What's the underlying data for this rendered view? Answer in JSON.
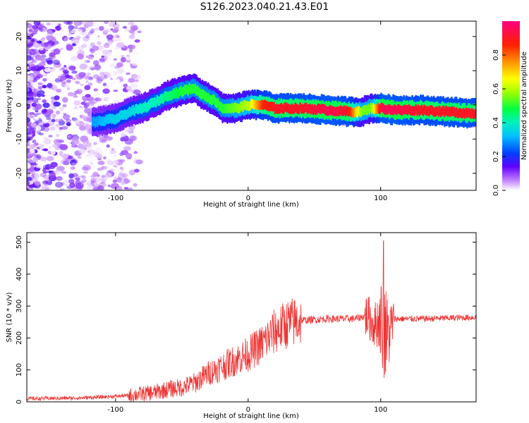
{
  "title": "S126.2023.040.21.43.E01",
  "chart_data": [
    {
      "type": "heatmap",
      "xlabel": "Height of straight line (km)",
      "ylabel": "Frequency (Hz)",
      "xlim": [
        -167,
        172
      ],
      "ylim": [
        -25,
        24.5
      ],
      "xticks": [
        -100,
        0,
        100
      ],
      "yticks": [
        -20,
        -10,
        0,
        10,
        20
      ],
      "colorbar": {
        "label": "Normalized spectral amplitude",
        "range": [
          0,
          1
        ],
        "ticks": [
          0.0,
          0.2,
          0.4,
          0.6,
          0.8
        ],
        "colormap": [
          "#ffffff",
          "#a040ff",
          "#4000ff",
          "#0060ff",
          "#00e0e0",
          "#00ff40",
          "#c0ff00",
          "#ffe000",
          "#ff8000",
          "#ff0000",
          "#ff0080"
        ]
      },
      "ridge": {
        "x": [
          -115,
          -100,
          -90,
          -80,
          -70,
          -60,
          -50,
          -42,
          -35,
          -25,
          -20,
          -10,
          0,
          10,
          20,
          40,
          60,
          75,
          85,
          92,
          100,
          110,
          130,
          150,
          170
        ],
        "freq": [
          -5,
          -4,
          -2,
          -1,
          1,
          3,
          4,
          5,
          3,
          1,
          -1,
          -1,
          0,
          0,
          -1,
          -1,
          -1.5,
          -2,
          -2,
          -1,
          -1,
          -1.5,
          -1.5,
          -2,
          -2.5
        ],
        "peak_amplitude": [
          0.3,
          0.35,
          0.35,
          0.4,
          0.4,
          0.45,
          0.5,
          0.5,
          0.5,
          0.5,
          0.5,
          0.55,
          0.6,
          0.85,
          0.9,
          0.9,
          0.95,
          0.9,
          0.55,
          0.55,
          0.95,
          0.95,
          0.9,
          0.9,
          0.9
        ]
      }
    },
    {
      "type": "line",
      "xlabel": "Height of straight line (km)",
      "ylabel": "SNR (10 * v/v)",
      "xlim": [
        -167,
        172
      ],
      "ylim": [
        0,
        530
      ],
      "xticks": [
        -100,
        0,
        100
      ],
      "yticks": [
        0,
        100,
        200,
        300,
        400,
        500
      ],
      "color": "#ee3333",
      "trend": {
        "x": [
          -167,
          -130,
          -110,
          -90,
          -70,
          -60,
          -50,
          -40,
          -30,
          -20,
          -10,
          0,
          10,
          20,
          30,
          40,
          60,
          80,
          90,
          95,
          100,
          105,
          110,
          130,
          172
        ],
        "y": [
          10,
          12,
          15,
          20,
          30,
          40,
          45,
          60,
          90,
          110,
          130,
          150,
          180,
          220,
          245,
          255,
          260,
          260,
          270,
          240,
          260,
          200,
          260,
          260,
          265
        ]
      }
    }
  ]
}
